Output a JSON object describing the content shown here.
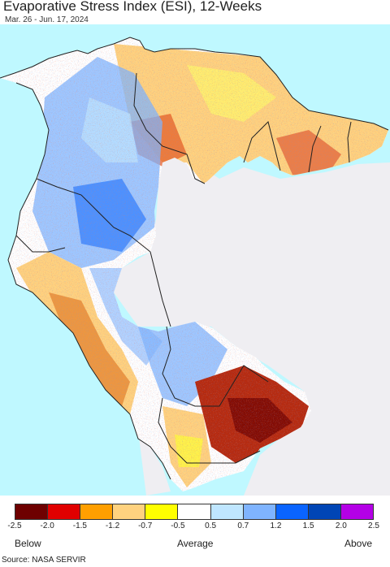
{
  "title": "Evaporative Stress Index (ESI), 12-Weeks",
  "subtitle": "Mar. 26 - Jun. 17, 2024",
  "legend": {
    "colors": [
      "#6e0000",
      "#e00000",
      "#ff9f00",
      "#ffd27f",
      "#ffff00",
      "#ffffff",
      "#bfe6ff",
      "#7fb4ff",
      "#0a64ff",
      "#0045b5",
      "#b400e6"
    ],
    "ticks": [
      "-2.5",
      "-2.0",
      "-1.5",
      "-1.2",
      "-0.7",
      "-0.5",
      "0.5",
      "0.7",
      "1.2",
      "1.5",
      "2.0",
      "2.5"
    ],
    "below_label": "Below",
    "average_label": "Average",
    "above_label": "Above"
  },
  "source": "Source: NASA SERVIR",
  "colors": {
    "ocean": "#bff8ff",
    "nodata": "#efeef2",
    "border": "#222222"
  }
}
